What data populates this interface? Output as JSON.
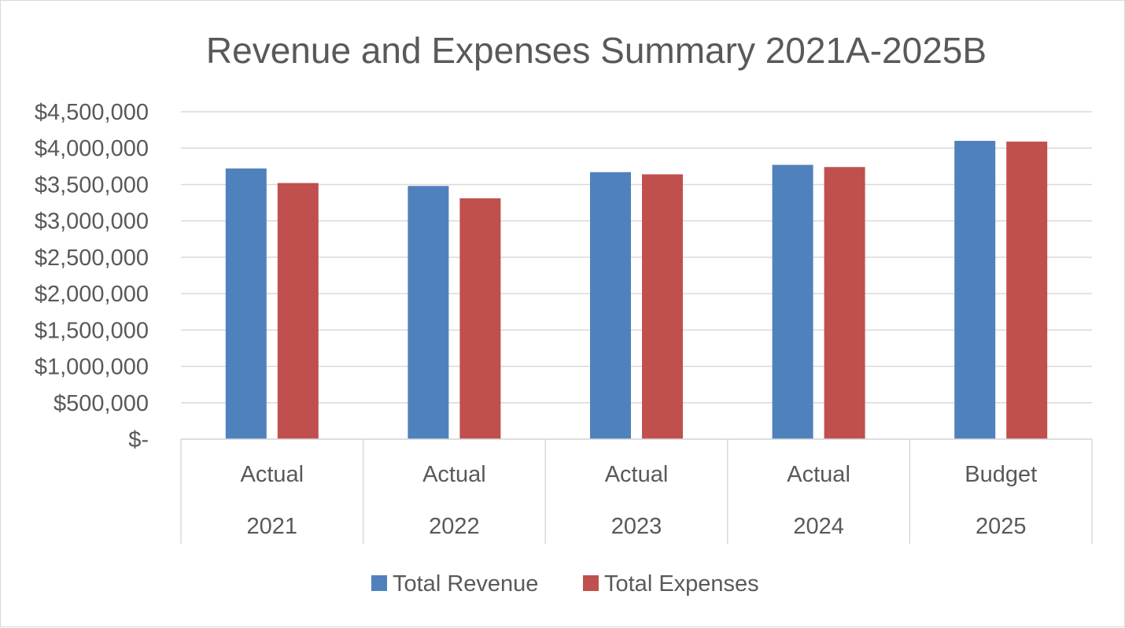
{
  "chart_data": {
    "type": "bar",
    "title": "Revenue and Expenses Summary 2021A-2025B",
    "categories": [
      {
        "label": "Actual",
        "year": "2021"
      },
      {
        "label": "Actual",
        "year": "2022"
      },
      {
        "label": "Actual",
        "year": "2023"
      },
      {
        "label": "Actual",
        "year": "2024"
      },
      {
        "label": "Budget",
        "year": "2025"
      }
    ],
    "series": [
      {
        "name": "Total Revenue",
        "color": "#4f81bd",
        "values": [
          3720000,
          3480000,
          3670000,
          3770000,
          4100000
        ]
      },
      {
        "name": "Total Expenses",
        "color": "#c0504d",
        "values": [
          3520000,
          3310000,
          3640000,
          3740000,
          4090000
        ]
      }
    ],
    "ylim": [
      0,
      4500000
    ],
    "yticks": [
      0,
      500000,
      1000000,
      1500000,
      2000000,
      2500000,
      3000000,
      3500000,
      4000000,
      4500000
    ],
    "ytick_labels": [
      "$-",
      "$500,000",
      "$1,000,000",
      "$1,500,000",
      "$2,000,000",
      "$2,500,000",
      "$3,000,000",
      "$3,500,000",
      "$4,000,000",
      "$4,500,000"
    ],
    "grid": true,
    "legend_position": "bottom",
    "xlabel": "",
    "ylabel": ""
  }
}
